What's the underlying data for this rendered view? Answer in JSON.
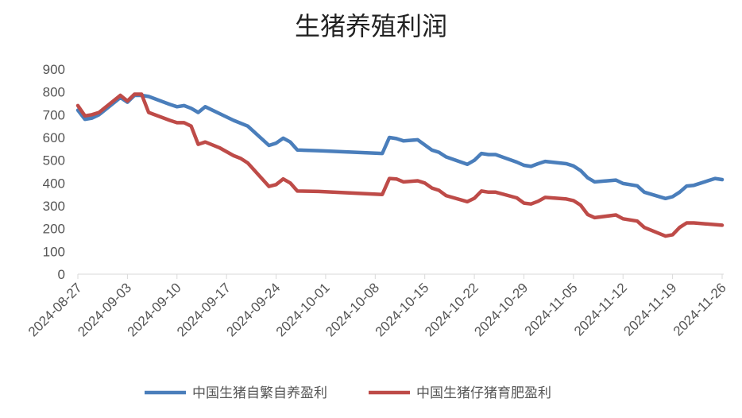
{
  "chart_data": {
    "type": "line",
    "title": "生猪养殖利润",
    "xlabel": "",
    "ylabel": "",
    "ylim": [
      0,
      900
    ],
    "yticks": [
      0,
      100,
      200,
      300,
      400,
      500,
      600,
      700,
      800,
      900
    ],
    "xticks": [
      "2024-08-27",
      "2024-09-03",
      "2024-09-10",
      "2024-09-17",
      "2024-09-24",
      "2024-10-01",
      "2024-10-08",
      "2024-10-15",
      "2024-10-22",
      "2024-10-29",
      "2024-11-05",
      "2024-11-12",
      "2024-11-19",
      "2024-11-26"
    ],
    "xrange": [
      "2024-08-27",
      "2024-11-26"
    ],
    "grid": false,
    "legend_position": "bottom",
    "series": [
      {
        "name": "中国生猪自繁自养盈利",
        "color": "#4a7ebb",
        "points": [
          [
            "2024-08-27",
            720
          ],
          [
            "2024-08-28",
            680
          ],
          [
            "2024-08-29",
            685
          ],
          [
            "2024-08-30",
            700
          ],
          [
            "2024-09-02",
            775
          ],
          [
            "2024-09-03",
            755
          ],
          [
            "2024-09-04",
            785
          ],
          [
            "2024-09-05",
            785
          ],
          [
            "2024-09-06",
            780
          ],
          [
            "2024-09-09",
            745
          ],
          [
            "2024-09-10",
            735
          ],
          [
            "2024-09-11",
            740
          ],
          [
            "2024-09-12",
            728
          ],
          [
            "2024-09-13",
            710
          ],
          [
            "2024-09-14",
            735
          ],
          [
            "2024-09-16",
            705
          ],
          [
            "2024-09-18",
            675
          ],
          [
            "2024-09-20",
            650
          ],
          [
            "2024-09-23",
            565
          ],
          [
            "2024-09-24",
            575
          ],
          [
            "2024-09-25",
            597
          ],
          [
            "2024-09-26",
            580
          ],
          [
            "2024-09-27",
            545
          ],
          [
            "2024-09-30",
            542
          ],
          [
            "2024-10-09",
            530
          ],
          [
            "2024-10-10",
            600
          ],
          [
            "2024-10-11",
            595
          ],
          [
            "2024-10-12",
            585
          ],
          [
            "2024-10-14",
            590
          ],
          [
            "2024-10-16",
            545
          ],
          [
            "2024-10-17",
            535
          ],
          [
            "2024-10-18",
            515
          ],
          [
            "2024-10-21",
            482
          ],
          [
            "2024-10-22",
            500
          ],
          [
            "2024-10-23",
            530
          ],
          [
            "2024-10-24",
            525
          ],
          [
            "2024-10-25",
            525
          ],
          [
            "2024-10-28",
            492
          ],
          [
            "2024-10-29",
            478
          ],
          [
            "2024-10-30",
            473
          ],
          [
            "2024-10-31",
            485
          ],
          [
            "2024-11-01",
            495
          ],
          [
            "2024-11-04",
            485
          ],
          [
            "2024-11-05",
            475
          ],
          [
            "2024-11-06",
            455
          ],
          [
            "2024-11-07",
            423
          ],
          [
            "2024-11-08",
            405
          ],
          [
            "2024-11-11",
            413
          ],
          [
            "2024-11-12",
            398
          ],
          [
            "2024-11-14",
            388
          ],
          [
            "2024-11-15",
            360
          ],
          [
            "2024-11-18",
            332
          ],
          [
            "2024-11-19",
            340
          ],
          [
            "2024-11-20",
            360
          ],
          [
            "2024-11-21",
            387
          ],
          [
            "2024-11-22",
            390
          ],
          [
            "2024-11-25",
            420
          ],
          [
            "2024-11-26",
            415
          ]
        ]
      },
      {
        "name": "中国生猪仔猪育肥盈利",
        "color": "#be4b48",
        "points": [
          [
            "2024-08-27",
            740
          ],
          [
            "2024-08-28",
            695
          ],
          [
            "2024-08-29",
            700
          ],
          [
            "2024-08-30",
            710
          ],
          [
            "2024-09-02",
            785
          ],
          [
            "2024-09-03",
            760
          ],
          [
            "2024-09-04",
            790
          ],
          [
            "2024-09-05",
            790
          ],
          [
            "2024-09-06",
            710
          ],
          [
            "2024-09-09",
            675
          ],
          [
            "2024-09-10",
            665
          ],
          [
            "2024-09-11",
            665
          ],
          [
            "2024-09-12",
            650
          ],
          [
            "2024-09-13",
            570
          ],
          [
            "2024-09-14",
            580
          ],
          [
            "2024-09-16",
            555
          ],
          [
            "2024-09-18",
            520
          ],
          [
            "2024-09-19",
            508
          ],
          [
            "2024-09-20",
            488
          ],
          [
            "2024-09-23",
            385
          ],
          [
            "2024-09-24",
            393
          ],
          [
            "2024-09-25",
            418
          ],
          [
            "2024-09-26",
            400
          ],
          [
            "2024-09-27",
            365
          ],
          [
            "2024-09-30",
            363
          ],
          [
            "2024-10-09",
            350
          ],
          [
            "2024-10-10",
            420
          ],
          [
            "2024-10-11",
            418
          ],
          [
            "2024-10-12",
            405
          ],
          [
            "2024-10-14",
            410
          ],
          [
            "2024-10-15",
            400
          ],
          [
            "2024-10-16",
            378
          ],
          [
            "2024-10-17",
            368
          ],
          [
            "2024-10-18",
            345
          ],
          [
            "2024-10-21",
            318
          ],
          [
            "2024-10-22",
            333
          ],
          [
            "2024-10-23",
            365
          ],
          [
            "2024-10-24",
            360
          ],
          [
            "2024-10-25",
            360
          ],
          [
            "2024-10-28",
            335
          ],
          [
            "2024-10-29",
            312
          ],
          [
            "2024-10-30",
            308
          ],
          [
            "2024-10-31",
            320
          ],
          [
            "2024-11-01",
            337
          ],
          [
            "2024-11-04",
            330
          ],
          [
            "2024-11-05",
            323
          ],
          [
            "2024-11-06",
            303
          ],
          [
            "2024-11-07",
            262
          ],
          [
            "2024-11-08",
            248
          ],
          [
            "2024-11-11",
            260
          ],
          [
            "2024-11-12",
            243
          ],
          [
            "2024-11-14",
            233
          ],
          [
            "2024-11-15",
            205
          ],
          [
            "2024-11-18",
            167
          ],
          [
            "2024-11-19",
            173
          ],
          [
            "2024-11-20",
            205
          ],
          [
            "2024-11-21",
            225
          ],
          [
            "2024-11-22",
            225
          ],
          [
            "2024-11-26",
            215
          ]
        ]
      }
    ]
  }
}
